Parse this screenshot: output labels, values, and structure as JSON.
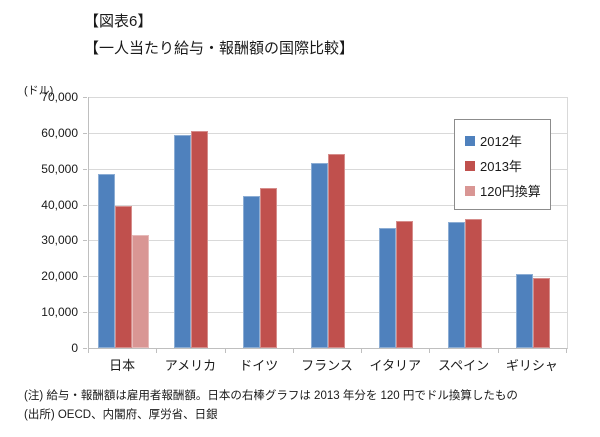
{
  "title": {
    "line1": "【図表6】",
    "line2": "【一人当たり給与・報酬額の国際比較】"
  },
  "chart_data": {
    "type": "bar",
    "title": "一人当たり給与・報酬額の国際比較",
    "y_axis_unit": "(ドル)",
    "categories": [
      "日本",
      "アメリカ",
      "ドイツ",
      "フランス",
      "イタリア",
      "スペイン",
      "ギリシャ"
    ],
    "series": [
      {
        "name": "2012年",
        "color": "#4F81BD",
        "values": [
          48500,
          59500,
          42500,
          51500,
          33500,
          35000,
          20500
        ]
      },
      {
        "name": "2013年",
        "color": "#C0504D",
        "values": [
          39500,
          60500,
          44500,
          54000,
          35500,
          36000,
          19500
        ]
      },
      {
        "name": "120円換算",
        "color": "#D99694",
        "values": [
          31500,
          null,
          null,
          null,
          null,
          null,
          null
        ]
      }
    ],
    "ylim": [
      0,
      70000
    ],
    "ytick_interval": 10000,
    "y_tick_labels": [
      "70,000",
      "60,000",
      "50,000",
      "40,000",
      "30,000",
      "20,000",
      "10,000",
      "0"
    ],
    "grid": true,
    "legend_position": "upper-right-inside",
    "gridline_color": "#d9d9d9"
  },
  "notes": {
    "line1": "(注) 給与・報酬額は雇用者報酬額。日本の右棒グラフは 2013 年分を 120 円でドル換算したもの",
    "line2": "(出所) OECD、内閣府、厚労省、日銀"
  }
}
